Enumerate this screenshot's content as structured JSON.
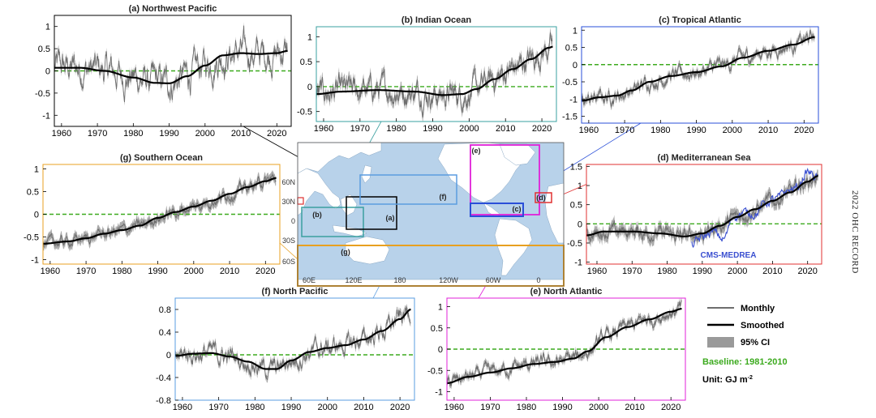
{
  "record_label": "2022 OHC RECORD",
  "colors": {
    "monthly": "#6e6e6e",
    "smoothed": "#000000",
    "ci": "#9a9a9a",
    "baseline": "#3caa1e",
    "cms": "#3a4fd0",
    "frame_a": "#000000",
    "frame_b": "#3aa0a0",
    "frame_c": "#2a4fd8",
    "frame_d": "#e03030",
    "frame_e": "#e020d8",
    "frame_f": "#5a9ce0",
    "frame_g": "#e8a020",
    "ocean": "#b8d2ea"
  },
  "legend": {
    "monthly": "Monthly",
    "smoothed": "Smoothed",
    "ci": "95% CI",
    "baseline": "Baseline: 1981-2010",
    "unit": "Unit: GJ m",
    "unit_exp": "-2"
  },
  "map": {
    "lat_labels": [
      "60N",
      "30N",
      "0",
      "30S",
      "60S"
    ],
    "lon_labels": [
      "60E",
      "120E",
      "180",
      "120W",
      "60W",
      "0"
    ],
    "box_labels": [
      "(a)",
      "(b)",
      "(c)",
      "(d)",
      "(e)",
      "(f)",
      "(g)"
    ]
  },
  "chart_data": [
    {
      "id": "a",
      "type": "line",
      "title": "(a) Northwest Pacific",
      "xlim": [
        1958,
        2024
      ],
      "ylim": [
        -1.25,
        1.25
      ],
      "yticks": [
        -1,
        -0.5,
        0,
        0.5,
        1
      ],
      "ytick_labels": [
        "-1",
        "-0.5",
        "0",
        "0.5",
        "1"
      ],
      "xticks": [
        1960,
        1970,
        1980,
        1990,
        2000,
        2010,
        2020
      ],
      "xtick_labels": [
        "1960",
        "1970",
        "1980",
        "1990",
        "2000",
        "2010",
        "2020"
      ],
      "baseline": 0,
      "noise": 0.32,
      "ci": 0.08,
      "smoothed": {
        "x": [
          1958,
          1965,
          1972,
          1980,
          1986,
          1990,
          1995,
          2000,
          2005,
          2010,
          2015,
          2020,
          2023
        ],
        "y": [
          0.07,
          0.07,
          0.0,
          -0.15,
          -0.27,
          -0.28,
          -0.12,
          0.12,
          0.35,
          0.4,
          0.38,
          0.4,
          0.45
        ]
      }
    },
    {
      "id": "b",
      "type": "line",
      "title": "(b) Indian Ocean",
      "xlim": [
        1958,
        2024
      ],
      "ylim": [
        -0.7,
        1.2
      ],
      "yticks": [
        -0.5,
        0,
        0.5,
        1
      ],
      "ytick_labels": [
        "-0.5",
        "0",
        "0.5",
        "1"
      ],
      "xticks": [
        1960,
        1970,
        1980,
        1990,
        2000,
        2010,
        2020
      ],
      "xtick_labels": [
        "1960",
        "1970",
        "1980",
        "1990",
        "2000",
        "2010",
        "2020"
      ],
      "baseline": 0,
      "noise": 0.22,
      "ci": 0.1,
      "smoothed": {
        "x": [
          1958,
          1965,
          1975,
          1985,
          1993,
          1998,
          2002,
          2007,
          2012,
          2017,
          2022,
          2023
        ],
        "y": [
          -0.15,
          -0.1,
          -0.07,
          -0.1,
          -0.17,
          -0.15,
          -0.05,
          0.15,
          0.35,
          0.55,
          0.78,
          0.8
        ]
      }
    },
    {
      "id": "c",
      "type": "line",
      "title": "(c) Tropical Atlantic",
      "xlim": [
        1958,
        2024
      ],
      "ylim": [
        -1.7,
        1.1
      ],
      "yticks": [
        -1.5,
        -1,
        -0.5,
        0,
        0.5,
        1
      ],
      "ytick_labels": [
        "-1.5",
        "-1",
        "-0.5",
        "0",
        "0.5",
        "1"
      ],
      "xticks": [
        1960,
        1970,
        1980,
        1990,
        2000,
        2010,
        2020
      ],
      "xtick_labels": [
        "1960",
        "1970",
        "1980",
        "1990",
        "2000",
        "2010",
        "2020"
      ],
      "baseline": 0,
      "noise": 0.18,
      "ci": 0.1,
      "smoothed": {
        "x": [
          1958,
          1963,
          1968,
          1972,
          1977,
          1983,
          1990,
          1997,
          2003,
          2010,
          2017,
          2023
        ],
        "y": [
          -1.05,
          -0.95,
          -0.9,
          -0.75,
          -0.5,
          -0.33,
          -0.22,
          -0.05,
          0.2,
          0.4,
          0.58,
          0.8
        ]
      }
    },
    {
      "id": "d",
      "type": "line",
      "title": "(d) Mediterranean Sea",
      "xlim": [
        1957,
        2024
      ],
      "ylim": [
        -1.05,
        1.55
      ],
      "yticks": [
        -1,
        -0.5,
        0,
        0.5,
        1,
        1.5
      ],
      "ytick_labels": [
        "-1",
        "-0.5",
        "0",
        "0.5",
        "1",
        "1.5"
      ],
      "xticks": [
        1960,
        1970,
        1980,
        1990,
        2000,
        2010,
        2020
      ],
      "xtick_labels": [
        "1960",
        "1970",
        "1980",
        "1990",
        "2000",
        "2010",
        "2020"
      ],
      "baseline": 0,
      "noise": 0.15,
      "ci": 0.14,
      "annotation": "CMS-MEDREA",
      "smoothed": {
        "x": [
          1957,
          1962,
          1970,
          1978,
          1985,
          1990,
          1995,
          2000,
          2005,
          2010,
          2015,
          2020,
          2023
        ],
        "y": [
          -0.3,
          -0.2,
          -0.2,
          -0.25,
          -0.33,
          -0.25,
          -0.05,
          0.18,
          0.38,
          0.6,
          0.82,
          1.1,
          1.25
        ]
      },
      "cms_series": {
        "x": [
          1987,
          1990,
          1993,
          1996,
          1999,
          2002,
          2005,
          2008,
          2011,
          2014,
          2017,
          2020,
          2023
        ],
        "y": [
          -0.55,
          -0.35,
          -0.2,
          -0.4,
          0.2,
          0.3,
          0.25,
          0.55,
          0.65,
          0.85,
          0.95,
          1.35,
          1.2
        ]
      }
    },
    {
      "id": "e",
      "type": "line",
      "title": "(e) North Atlantic",
      "xlim": [
        1958,
        2024
      ],
      "ylim": [
        -1.2,
        1.2
      ],
      "yticks": [
        -1,
        -0.5,
        0,
        0.5,
        1
      ],
      "ytick_labels": [
        "-1",
        "-0.5",
        "0",
        "0.5",
        "1"
      ],
      "xticks": [
        1960,
        1970,
        1980,
        1990,
        2000,
        2010,
        2020
      ],
      "xtick_labels": [
        "1960",
        "1970",
        "1980",
        "1990",
        "2000",
        "2010",
        "2020"
      ],
      "baseline": 0,
      "noise": 0.14,
      "ci": 0.08,
      "smoothed": {
        "x": [
          1958,
          1964,
          1970,
          1976,
          1982,
          1988,
          1993,
          1997,
          2002,
          2008,
          2014,
          2020,
          2023
        ],
        "y": [
          -0.8,
          -0.65,
          -0.55,
          -0.45,
          -0.35,
          -0.3,
          -0.22,
          -0.05,
          0.28,
          0.52,
          0.7,
          0.88,
          0.95
        ]
      }
    },
    {
      "id": "f",
      "type": "line",
      "title": "(f) North Pacific",
      "xlim": [
        1958,
        2024
      ],
      "ylim": [
        -0.8,
        1.0
      ],
      "yticks": [
        -0.8,
        -0.4,
        0,
        0.4,
        0.8
      ],
      "ytick_labels": [
        "-0.8",
        "-0.4",
        "0",
        "0.4",
        "0.8"
      ],
      "xticks": [
        1960,
        1970,
        1980,
        1990,
        2000,
        2010,
        2020
      ],
      "xtick_labels": [
        "1960",
        "1970",
        "1980",
        "1990",
        "2000",
        "2010",
        "2020"
      ],
      "baseline": 0,
      "noise": 0.15,
      "ci": 0.06,
      "smoothed": {
        "x": [
          1958,
          1963,
          1968,
          1973,
          1978,
          1983,
          1986,
          1990,
          1995,
          2000,
          2005,
          2010,
          2015,
          2020,
          2023
        ],
        "y": [
          -0.02,
          0.02,
          0.03,
          -0.03,
          -0.12,
          -0.25,
          -0.25,
          -0.1,
          0.05,
          0.12,
          0.17,
          0.27,
          0.42,
          0.63,
          0.8
        ]
      }
    },
    {
      "id": "g",
      "type": "line",
      "title": "(g) Southern Ocean",
      "xlim": [
        1958,
        2024
      ],
      "ylim": [
        -1.1,
        1.1
      ],
      "yticks": [
        -1,
        -0.5,
        0,
        0.5,
        1
      ],
      "ytick_labels": [
        "-1",
        "-0.5",
        "0",
        "0.5",
        "1"
      ],
      "xticks": [
        1960,
        1970,
        1980,
        1990,
        2000,
        2010,
        2020
      ],
      "xtick_labels": [
        "1960",
        "1970",
        "1980",
        "1990",
        "2000",
        "2010",
        "2020"
      ],
      "baseline": 0,
      "noise": 0.1,
      "ci": 0.1,
      "smoothed": {
        "x": [
          1958,
          1965,
          1970,
          1975,
          1980,
          1985,
          1990,
          1995,
          2000,
          2005,
          2010,
          2015,
          2020,
          2023
        ],
        "y": [
          -0.65,
          -0.6,
          -0.53,
          -0.43,
          -0.35,
          -0.25,
          -0.08,
          0.05,
          0.17,
          0.3,
          0.45,
          0.6,
          0.73,
          0.8
        ]
      }
    }
  ]
}
